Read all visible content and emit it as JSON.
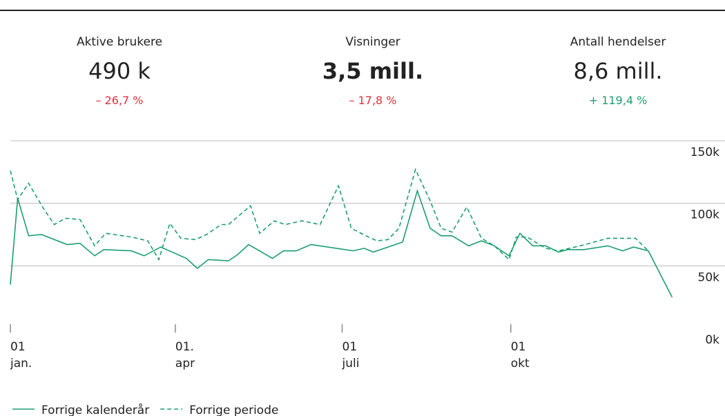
{
  "kpis": [
    {
      "label": "Aktive brukere",
      "value": "490 k",
      "change": "– 26,7 %",
      "trend": "down"
    },
    {
      "label": "Visninger",
      "value": "3,5 mill.",
      "change": "– 17,8 %",
      "trend": "down"
    },
    {
      "label": "Antall hendelser",
      "value": "8,6 mill.",
      "change": "+ 119,4 %",
      "trend": "up"
    }
  ],
  "chart_data": {
    "type": "line",
    "xlim": [
      0,
      365
    ],
    "xticks": [
      {
        "value": 0,
        "label": "01 jan."
      },
      {
        "value": 90,
        "label": "01. apr"
      },
      {
        "value": 181,
        "label": "01 juli"
      },
      {
        "value": 273,
        "label": "01 okt"
      }
    ],
    "ylim": [
      0,
      150000
    ],
    "yticks": [
      {
        "value": 0,
        "label": "0k"
      },
      {
        "value": 50000,
        "label": "50k"
      },
      {
        "value": 100000,
        "label": "100k"
      },
      {
        "value": 150000,
        "label": "150k"
      }
    ],
    "grid": true,
    "series": [
      {
        "name": "Forrige kalenderår",
        "color": "#1a9e6e",
        "dash": false,
        "x": [
          0,
          4,
          10,
          17,
          31,
          38,
          46,
          51,
          66,
          73,
          82,
          96,
          102,
          108,
          119,
          124,
          130,
          143,
          149,
          156,
          164,
          187,
          193,
          198,
          214,
          222,
          229,
          235,
          241,
          250,
          257,
          264,
          272,
          278,
          285,
          292,
          299,
          304,
          313,
          326,
          334,
          340,
          348,
          361
        ],
        "values": [
          35000,
          104000,
          74000,
          75000,
          67000,
          68000,
          58000,
          63000,
          62000,
          58000,
          65000,
          56000,
          48000,
          55000,
          54000,
          59000,
          67000,
          56000,
          62000,
          62000,
          67000,
          62000,
          64000,
          61000,
          69000,
          110000,
          80000,
          74000,
          74000,
          66000,
          70000,
          66000,
          58000,
          76000,
          66000,
          66000,
          61000,
          63000,
          63000,
          66000,
          62000,
          65000,
          62000,
          25000
        ]
      },
      {
        "name": "Forrige periode",
        "color": "#1a9e6e",
        "dash": true,
        "x": [
          0,
          4,
          10,
          18,
          24,
          30,
          38,
          46,
          52,
          66,
          75,
          81,
          87,
          93,
          101,
          107,
          115,
          119,
          131,
          136,
          144,
          150,
          159,
          169,
          179,
          186,
          194,
          200,
          206,
          212,
          221,
          229,
          235,
          241,
          249,
          257,
          264,
          272,
          276,
          282,
          292,
          299,
          311,
          326,
          334,
          341,
          348
        ],
        "values": [
          126000,
          103000,
          116000,
          96000,
          83000,
          88000,
          87000,
          66000,
          76000,
          73000,
          70000,
          55000,
          84000,
          72000,
          71000,
          75000,
          83000,
          83000,
          98000,
          76000,
          86000,
          83000,
          86000,
          83000,
          114000,
          80000,
          74000,
          70000,
          71000,
          80000,
          127000,
          102000,
          80000,
          77000,
          97000,
          72000,
          66000,
          55000,
          73000,
          73000,
          64000,
          62000,
          66000,
          72000,
          72000,
          72000,
          62000
        ]
      }
    ]
  }
}
